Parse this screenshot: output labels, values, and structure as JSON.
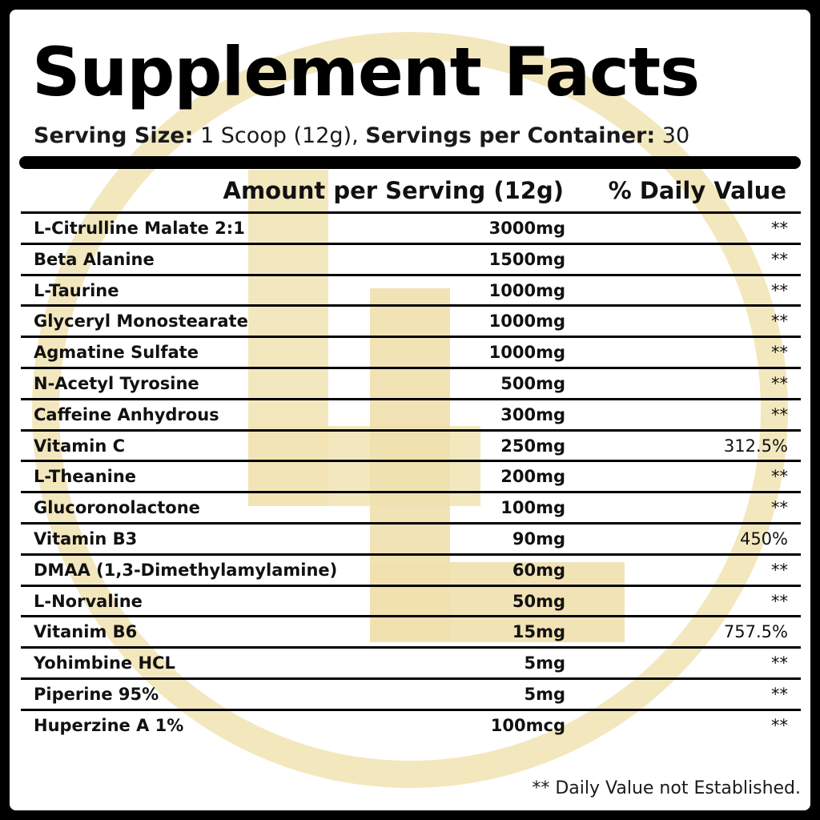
{
  "title": "Supplement Facts",
  "serving": {
    "size_label": "Serving Size:",
    "size_value": "1 Scoop (12g),",
    "per_container_label": "Servings per Container:",
    "per_container_value": "30"
  },
  "headers": {
    "amount": "Amount per Serving (12g)",
    "daily_value": "% Daily Value"
  },
  "ingredients": [
    {
      "name": "L-Citrulline Malate 2:1",
      "amount": "3000mg",
      "dv": "**"
    },
    {
      "name": "Beta Alanine",
      "amount": "1500mg",
      "dv": "**"
    },
    {
      "name": "L-Taurine",
      "amount": "1000mg",
      "dv": "**"
    },
    {
      "name": "Glyceryl Monostearate",
      "amount": "1000mg",
      "dv": "**"
    },
    {
      "name": "Agmatine Sulfate",
      "amount": "1000mg",
      "dv": "**"
    },
    {
      "name": "N-Acetyl Tyrosine",
      "amount": "500mg",
      "dv": "**"
    },
    {
      "name": "Caffeine Anhydrous",
      "amount": "300mg",
      "dv": "**"
    },
    {
      "name": "Vitamin C",
      "amount": "250mg",
      "dv": "312.5%"
    },
    {
      "name": "L-Theanine",
      "amount": "200mg",
      "dv": "**"
    },
    {
      "name": "Glucoronolactone",
      "amount": "100mg",
      "dv": "**"
    },
    {
      "name": "Vitamin B3",
      "amount": "90mg",
      "dv": "450%"
    },
    {
      "name": "DMAA (1,3-Dimethylamylamine)",
      "amount": "60mg",
      "dv": "**"
    },
    {
      "name": "L-Norvaline",
      "amount": "50mg",
      "dv": "**"
    },
    {
      "name": "Vitanim B6",
      "amount": "15mg",
      "dv": "757.5%"
    },
    {
      "name": "Yohimbine HCL",
      "amount": "5mg",
      "dv": "**"
    },
    {
      "name": "Piperine 95%",
      "amount": "5mg",
      "dv": "**"
    },
    {
      "name": "Huperzine A 1%",
      "amount": "100mcg",
      "dv": "**"
    }
  ],
  "footnote": "** Daily Value not Established.",
  "colors": {
    "background": "#000000",
    "panel": "#ffffff",
    "watermark": "#f3e6b8"
  },
  "watermark_icon": "circle-logo-icon"
}
